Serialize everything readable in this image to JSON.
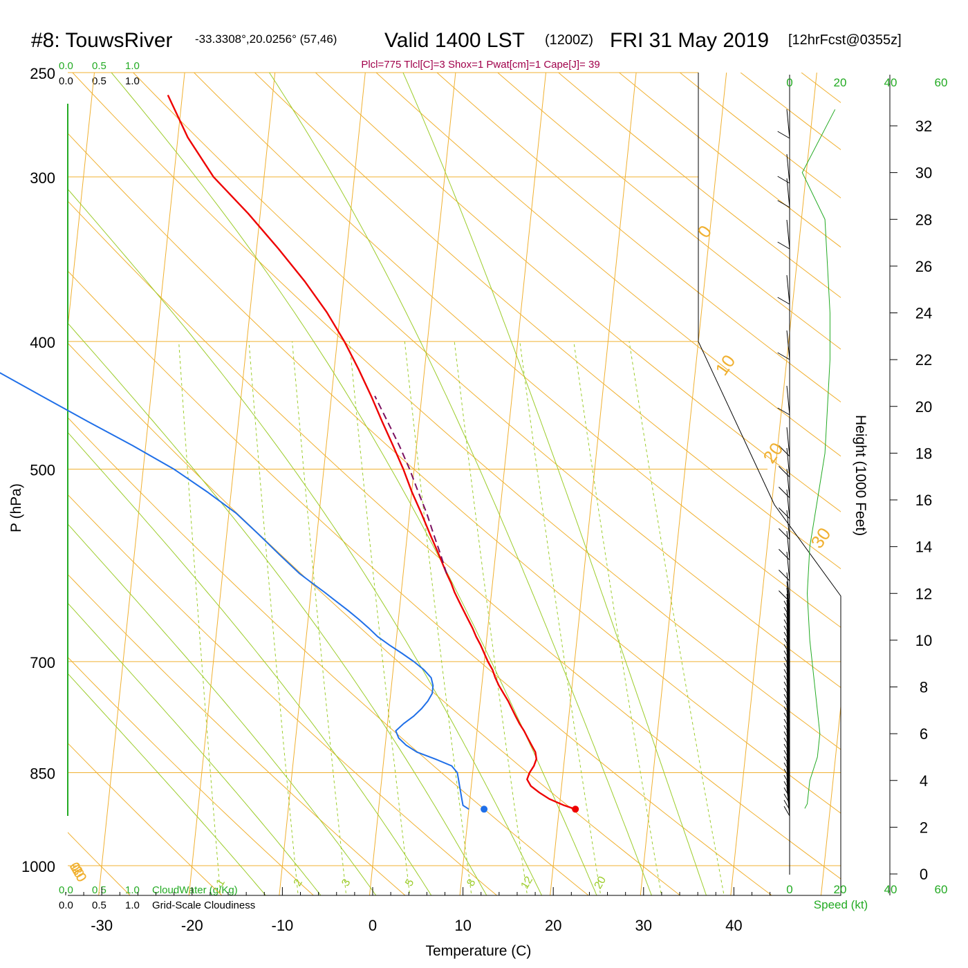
{
  "header": {
    "station": "#8: TouwsRiver",
    "coords": "-33.3308°,20.0256° (57,46)",
    "valid": "Valid 1400 LST",
    "utc": "(1200Z)",
    "date": "FRI 31 May 2019",
    "forecast": "[12hrFcst@0355z]",
    "params": "Plcl=775 Tlcl[C]=3 Shox=1 Pwat[cm]=1 Cape[J]= 39"
  },
  "axes": {
    "pressure_label": "P (hPa)",
    "pressure_ticks": [
      "250",
      "300",
      "400",
      "500",
      "700",
      "850",
      "1000"
    ],
    "temperature_label": "Temperature (C)",
    "temperature_ticks": [
      "-30",
      "-20",
      "-10",
      "0",
      "10",
      "20",
      "30",
      "40"
    ],
    "height_label": "Height (1000 Feet)",
    "height_ticks": [
      "32",
      "30",
      "28",
      "26",
      "24",
      "22",
      "20",
      "18",
      "16",
      "14",
      "12",
      "10",
      "8",
      "6",
      "4",
      "2",
      "0"
    ],
    "speed_label": "Speed (kt)",
    "speed_ticks": [
      "0",
      "20",
      "40",
      "60"
    ]
  },
  "cloud_scale": {
    "values": [
      "0.0",
      "0.5",
      "1.0"
    ],
    "cloudwater_label": "CloudWater (g/Kg)",
    "cloudiness_label": "Grid-Scale Cloudiness"
  },
  "isotherm_labels": {
    "left": [
      "10",
      "0",
      "-10",
      "-20",
      "-30"
    ],
    "right": [
      "0",
      "10",
      "20",
      "30"
    ]
  },
  "mixing_ratio_labels": [
    "1",
    "2",
    "3",
    "5",
    "8",
    "12",
    "20"
  ],
  "colors": {
    "temperature": "#ee0000",
    "dewpoint": "#1f6fe8",
    "isotherm": "#f0b030",
    "adiabat": "#9ccc2a",
    "parcel": "#7a1060",
    "speed": "#22aa22",
    "text_green": "#22aa22"
  },
  "chart_data": {
    "type": "line",
    "title": "Valid 1400 LST (1200Z) FRI 31 May 2019",
    "xlabel": "Temperature (C)",
    "ylabel": "P (hPa)",
    "xlim": [
      -30,
      40
    ],
    "ylim": [
      1000,
      250
    ],
    "series": [
      {
        "key": "temperature",
        "pressure": [
          906,
          900,
          890,
          880,
          870,
          860,
          850,
          840,
          830,
          820,
          810,
          800,
          790,
          780,
          770,
          760,
          750,
          740,
          730,
          720,
          710,
          700,
          690,
          680,
          670,
          660,
          650,
          640,
          630,
          620,
          610,
          600,
          580,
          560,
          540,
          520,
          500,
          480,
          460,
          440,
          420,
          400,
          380,
          360,
          340,
          320,
          300,
          280,
          260
        ],
        "values": [
          21.8,
          20.5,
          18.8,
          17.6,
          16.6,
          16.1,
          16.3,
          16.7,
          16.9,
          16.7,
          16.2,
          15.7,
          15.2,
          14.6,
          14.1,
          13.6,
          13.1,
          12.5,
          11.9,
          11.4,
          11.0,
          10.4,
          9.9,
          9.4,
          8.8,
          8.3,
          7.7,
          7.1,
          6.5,
          5.9,
          5.4,
          4.8,
          3.7,
          2.5,
          1.3,
          0.0,
          -1.2,
          -2.6,
          -4.1,
          -5.6,
          -7.3,
          -9.2,
          -11.5,
          -14.3,
          -17.6,
          -21.3,
          -25.6,
          -28.9,
          -31.6
        ]
      },
      {
        "key": "dewpoint",
        "pressure": [
          906,
          900,
          890,
          880,
          870,
          860,
          850,
          840,
          830,
          820,
          810,
          800,
          790,
          780,
          770,
          760,
          750,
          740,
          730,
          720,
          710,
          700,
          690,
          680,
          670,
          660,
          650,
          640,
          630,
          620,
          610,
          600,
          580,
          560,
          540,
          520,
          500,
          480,
          460,
          440,
          420,
          400,
          380,
          360,
          340,
          320,
          300,
          280,
          260
        ],
        "values": [
          10.0,
          9.3,
          9.1,
          8.9,
          8.7,
          8.5,
          8.3,
          7.6,
          5.7,
          3.6,
          2.3,
          1.4,
          1.0,
          1.8,
          2.8,
          3.6,
          4.2,
          4.6,
          4.6,
          4.3,
          3.4,
          2.2,
          0.8,
          -0.7,
          -2.1,
          -3.2,
          -4.4,
          -5.7,
          -7.1,
          -8.5,
          -10.0,
          -11.5,
          -14.0,
          -16.5,
          -19.2,
          -22.7,
          -26.6,
          -31.4,
          -36.7,
          -42.1,
          -47.7,
          -53.2,
          -58.6,
          -63.9,
          -69.1,
          -71.6,
          -71.7,
          -72.5,
          -74.5
        ]
      },
      {
        "key": "parcel",
        "pressure": [
          600,
          580,
          560,
          540,
          520,
          500,
          480,
          460,
          440
        ],
        "values": [
          4.8,
          3.9,
          2.9,
          1.9,
          0.7,
          -0.5,
          -1.9,
          -3.5,
          -5.2
        ]
      },
      {
        "key": "wind_speed",
        "height_kft": [
          2.8,
          3,
          4,
          5,
          6,
          8,
          10,
          12,
          14,
          16,
          18,
          20,
          22,
          24,
          26,
          28,
          30,
          32.7
        ],
        "values": [
          6,
          7,
          8,
          11,
          12,
          10,
          8,
          7,
          8,
          11,
          14,
          15,
          16,
          16,
          15,
          14,
          5,
          18
        ]
      }
    ]
  }
}
